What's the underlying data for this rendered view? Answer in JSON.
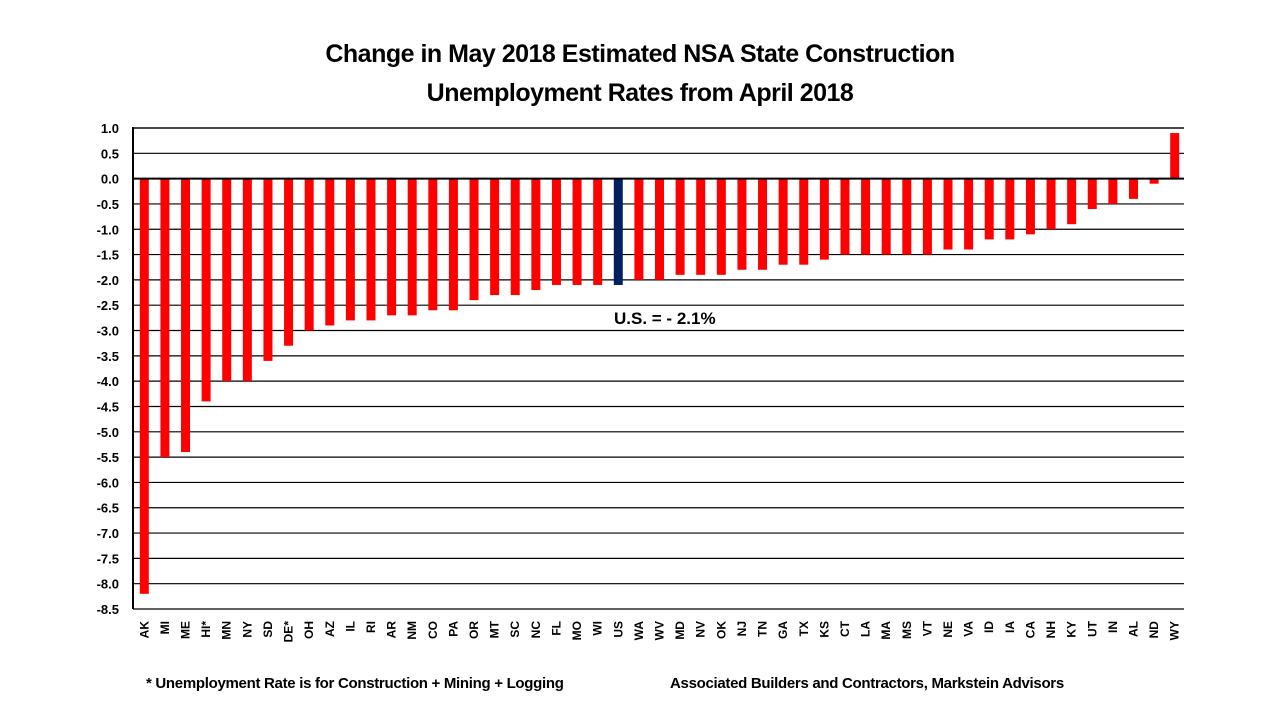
{
  "chart_data": {
    "type": "bar",
    "title": "Change in May 2018 Estimated NSA State Construction Unemployment Rates from April 2018",
    "title_lines": [
      "Change in May 2018 Estimated NSA State Construction",
      "Unemployment Rates from April 2018"
    ],
    "xlabel": "",
    "ylabel": "",
    "ylim": [
      -8.5,
      1.0
    ],
    "yticks": [
      1.0,
      0.5,
      0.0,
      -0.5,
      -1.0,
      -1.5,
      -2.0,
      -2.5,
      -3.0,
      -3.5,
      -4.0,
      -4.5,
      -5.0,
      -5.5,
      -6.0,
      -6.5,
      -7.0,
      -7.5,
      -8.0,
      -8.5
    ],
    "ytick_labels": [
      "1.0",
      "0.5",
      "0.0",
      "-0.5",
      "-1.0",
      "-1.5",
      "-2.0",
      "-2.5",
      "-3.0",
      "-3.5",
      "-4.0",
      "-4.5",
      "-5.0",
      "-5.5",
      "-6.0",
      "-6.5",
      "-7.0",
      "-7.5",
      "-8.0",
      "-8.5"
    ],
    "grid": true,
    "legend": "none",
    "categories": [
      "AK",
      "MI",
      "ME",
      "HI*",
      "MN",
      "NY",
      "SD",
      "DE*",
      "OH",
      "AZ",
      "IL",
      "RI",
      "AR",
      "NM",
      "CO",
      "PA",
      "OR",
      "MT",
      "SC",
      "NC",
      "FL",
      "MO",
      "WI",
      "US",
      "WA",
      "WV",
      "MD",
      "NV",
      "OK",
      "NJ",
      "TN",
      "GA",
      "TX",
      "KS",
      "CT",
      "LA",
      "MA",
      "MS",
      "VT",
      "NE",
      "VA",
      "ID",
      "IA",
      "CA",
      "NH",
      "KY",
      "UT",
      "IN",
      "AL",
      "ND",
      "WY"
    ],
    "values": [
      -8.2,
      -5.5,
      -5.4,
      -4.4,
      -4.0,
      -4.0,
      -3.6,
      -3.3,
      -3.0,
      -2.9,
      -2.8,
      -2.8,
      -2.7,
      -2.7,
      -2.6,
      -2.6,
      -2.4,
      -2.3,
      -2.3,
      -2.2,
      -2.1,
      -2.1,
      -2.1,
      -2.1,
      -2.0,
      -2.0,
      -1.9,
      -1.9,
      -1.9,
      -1.8,
      -1.8,
      -1.7,
      -1.7,
      -1.6,
      -1.5,
      -1.5,
      -1.5,
      -1.5,
      -1.5,
      -1.4,
      -1.4,
      -1.2,
      -1.2,
      -1.1,
      -1.0,
      -0.9,
      -0.6,
      -0.5,
      -0.4,
      -0.1,
      0.9
    ],
    "highlight_category": "US",
    "colors": {
      "bar": "#ff0000",
      "highlight": "#002060",
      "grid": "#000000"
    },
    "annotations": [
      {
        "text": "U.S. = - 2.1%",
        "near": "US"
      }
    ],
    "footnotes": {
      "left": "* Unemployment Rate is for Construction + Mining + Logging",
      "right": "Associated Builders and Contractors, Markstein Advisors"
    }
  }
}
